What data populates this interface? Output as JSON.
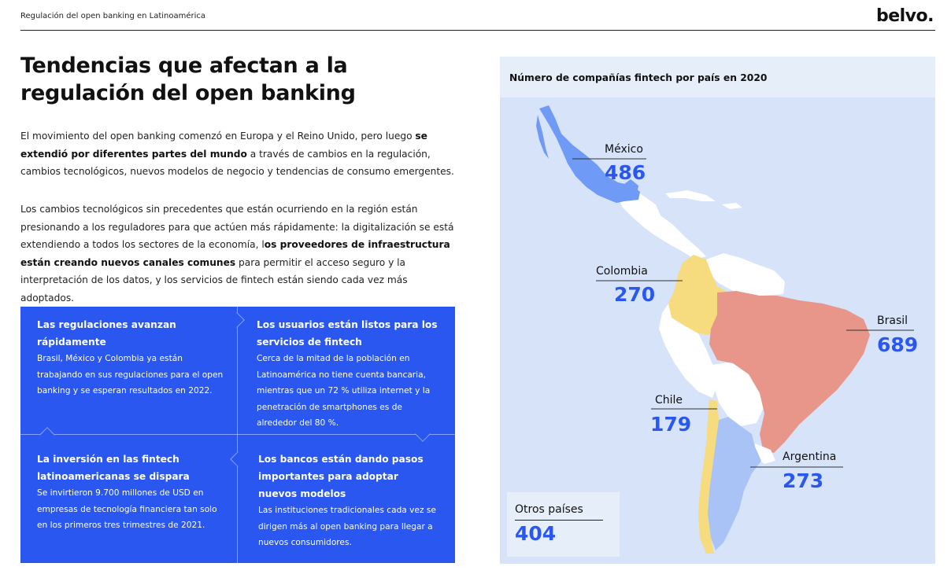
{
  "header": {
    "title": "Regulación del open banking en Latinoamérica",
    "logo": "belvo."
  },
  "page": {
    "title": "Tendencias que afectan a la regulación del open banking"
  },
  "intro": {
    "p1_a": "El movimiento del open banking comenzó en Europa y el Reino Unido, pero luego ",
    "p1_b": "se extendió por diferentes partes del mundo",
    "p1_c": " a través de cambios en la regulación, cambios tecnológicos, nuevos modelos de negocio y tendencias de consumo emergentes.",
    "p2_a": "Los cambios tecnológicos sin precedentes que están ocurriendo en la región están presionando a los reguladores para que actúen más rápidamente: la digitalización se está extendiendo a todos los sectores de la economía, l",
    "p2_b": "os proveedores de infraestructura están creando nuevos canales comunes",
    "p2_c": " para permitir el acceso seguro y la interpretación de los datos, y los servicios de fintech están siendo cada vez más adoptados."
  },
  "trends": [
    {
      "title": "Las regulaciones avanzan rápidamente",
      "body": "Brasil, México y Colombia ya están trabajando en sus regulaciones para el open banking y se esperan resultados en 2022."
    },
    {
      "title": "Los usuarios están listos para los servicios de fintech",
      "body": "Cerca de la mitad de la población en Latinoamérica no tiene cuenta bancaria, mientras que un 72 % utiliza internet y la penetración de smartphones es de alrededor del 80 %."
    },
    {
      "title": "La inversión en las fintech latinoamericanas se dispara",
      "body": "Se invirtieron 9.700 millones de USD en empresas de tecnología financiera tan solo en los primeros tres trimestres de 2021."
    },
    {
      "title": "Los bancos están dando pasos importantes para adoptar nuevos modelos",
      "body": "Las instituciones tradicionales cada vez se dirigen más al open banking para llegar a nuevos consumidores."
    }
  ],
  "map": {
    "title": "Número de compañías fintech por país en 2020",
    "colors": {
      "background": "#d6e3f9",
      "land": "#ffffff",
      "mexico": "#6f9af5",
      "colombia": "#f6dc7e",
      "brasil": "#e8958a",
      "chile": "#f6dc7e",
      "argentina": "#a9c3f7",
      "accent": "#2a57f0"
    },
    "countries": [
      {
        "name": "México",
        "value": "486"
      },
      {
        "name": "Colombia",
        "value": "270"
      },
      {
        "name": "Brasil",
        "value": "689"
      },
      {
        "name": "Chile",
        "value": "179"
      },
      {
        "name": "Argentina",
        "value": "273"
      }
    ],
    "otros": {
      "name": "Otros países",
      "value": "404"
    }
  }
}
